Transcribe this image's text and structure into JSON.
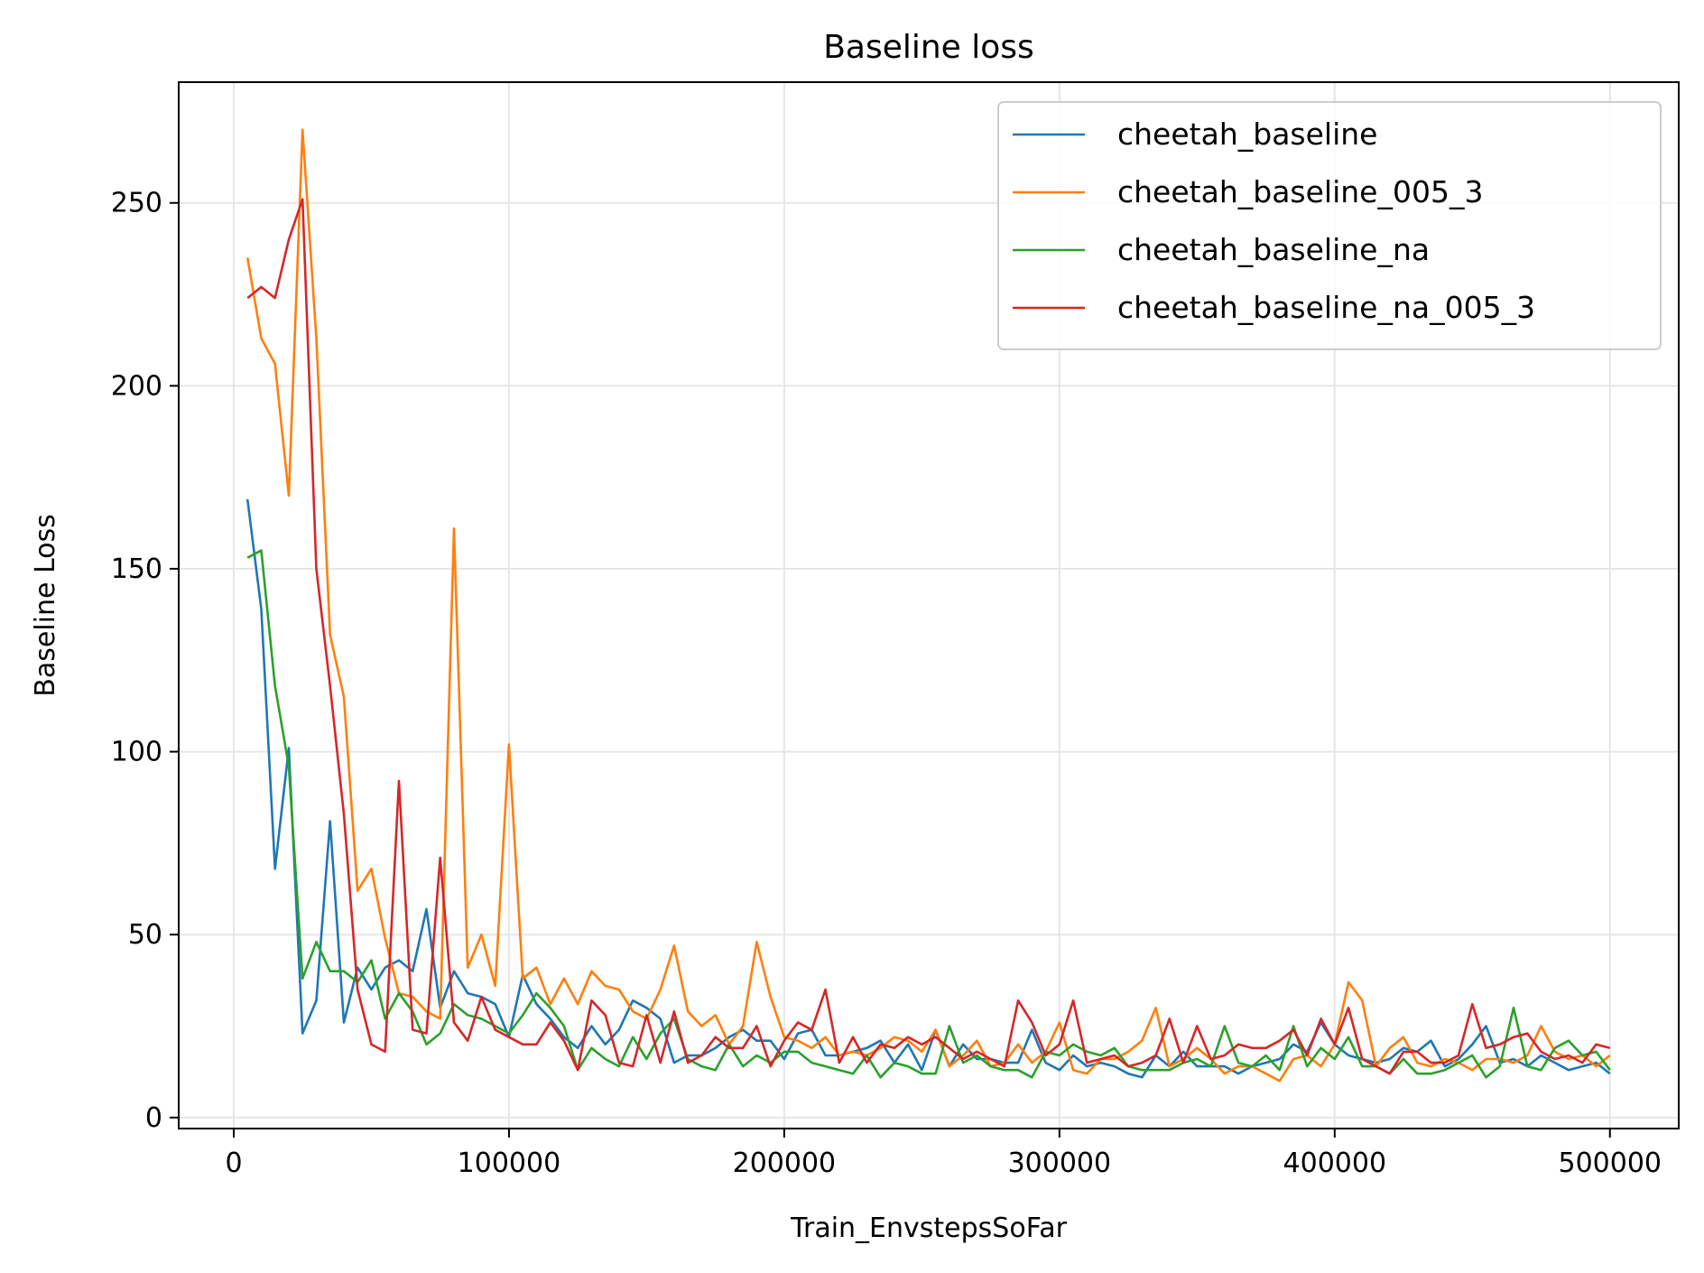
{
  "chart_data": {
    "type": "line",
    "title": "Baseline loss",
    "xlabel": "Train_EnvstepsSoFar",
    "ylabel": "Baseline Loss",
    "xlim": [
      -20000,
      525000
    ],
    "ylim": [
      -3,
      283
    ],
    "xticks": [
      0,
      100000,
      200000,
      300000,
      400000,
      500000
    ],
    "yticks": [
      0,
      50,
      100,
      150,
      200,
      250
    ],
    "grid": true,
    "legend_position": "top-right",
    "x": [
      5000,
      10000,
      15000,
      20000,
      25000,
      30000,
      35000,
      40000,
      45000,
      50000,
      55000,
      60000,
      65000,
      70000,
      75000,
      80000,
      85000,
      90000,
      95000,
      100000,
      105000,
      110000,
      115000,
      120000,
      125000,
      130000,
      135000,
      140000,
      145000,
      150000,
      155000,
      160000,
      165000,
      170000,
      175000,
      180000,
      185000,
      190000,
      195000,
      200000,
      205000,
      210000,
      215000,
      220000,
      225000,
      230000,
      235000,
      240000,
      245000,
      250000,
      255000,
      260000,
      265000,
      270000,
      275000,
      280000,
      285000,
      290000,
      295000,
      300000,
      305000,
      310000,
      315000,
      320000,
      325000,
      330000,
      335000,
      340000,
      345000,
      350000,
      355000,
      360000,
      365000,
      370000,
      375000,
      380000,
      385000,
      390000,
      395000,
      400000,
      405000,
      410000,
      415000,
      420000,
      425000,
      430000,
      435000,
      440000,
      445000,
      450000,
      455000,
      460000,
      465000,
      470000,
      475000,
      480000,
      485000,
      490000,
      495000,
      500000
    ],
    "series": [
      {
        "name": "cheetah_baseline",
        "color": "#1f77b4",
        "values": [
          169,
          139,
          68,
          101,
          23,
          32,
          81,
          26,
          41,
          35,
          41,
          43,
          40,
          57,
          30,
          40,
          34,
          33,
          31,
          22,
          39,
          31,
          27,
          22,
          19,
          25,
          20,
          24,
          32,
          30,
          27,
          15,
          17,
          17,
          19,
          22,
          24,
          21,
          21,
          16,
          23,
          24,
          17,
          17,
          18,
          19,
          21,
          15,
          20,
          13,
          24,
          14,
          20,
          16,
          16,
          15,
          15,
          24,
          15,
          13,
          17,
          14,
          15,
          14,
          12,
          11,
          17,
          14,
          18,
          14,
          14,
          14,
          12,
          14,
          15,
          16,
          20,
          18,
          26,
          20,
          17,
          16,
          15,
          16,
          19,
          18,
          21,
          14,
          16,
          20,
          25,
          15,
          16,
          14,
          17,
          15,
          13,
          14,
          15,
          12
        ]
      },
      {
        "name": "cheetah_baseline_005_3",
        "color": "#ff7f0e",
        "values": [
          235,
          213,
          206,
          170,
          270,
          213,
          132,
          115,
          62,
          68,
          49,
          34,
          33,
          29,
          27,
          161,
          41,
          50,
          36,
          102,
          38,
          41,
          31,
          38,
          31,
          40,
          36,
          35,
          29,
          27,
          35,
          47,
          29,
          25,
          28,
          20,
          25,
          48,
          33,
          22,
          21,
          19,
          22,
          17,
          18,
          17,
          19,
          22,
          21,
          18,
          24,
          14,
          17,
          21,
          14,
          15,
          20,
          15,
          18,
          26,
          13,
          12,
          16,
          16,
          18,
          21,
          30,
          14,
          16,
          19,
          16,
          12,
          14,
          14,
          12,
          10,
          16,
          17,
          14,
          20,
          37,
          32,
          14,
          19,
          22,
          15,
          14,
          16,
          15,
          13,
          16,
          16,
          15,
          17,
          25,
          18,
          16,
          17,
          14,
          17
        ]
      },
      {
        "name": "cheetah_baseline_na",
        "color": "#2ca02c",
        "values": [
          153,
          155,
          118,
          96,
          38,
          48,
          40,
          40,
          37,
          43,
          27,
          34,
          29,
          20,
          23,
          31,
          28,
          27,
          25,
          23,
          28,
          34,
          30,
          25,
          13,
          19,
          16,
          14,
          22,
          16,
          23,
          27,
          16,
          14,
          13,
          20,
          14,
          17,
          15,
          18,
          18,
          15,
          14,
          13,
          12,
          17,
          11,
          15,
          14,
          12,
          12,
          25,
          15,
          17,
          14,
          13,
          13,
          11,
          18,
          17,
          20,
          18,
          17,
          19,
          14,
          13,
          13,
          13,
          15,
          16,
          14,
          25,
          15,
          14,
          17,
          13,
          25,
          14,
          19,
          16,
          22,
          14,
          14,
          12,
          16,
          12,
          12,
          13,
          15,
          17,
          11,
          14,
          30,
          14,
          13,
          19,
          21,
          17,
          18,
          13
        ]
      },
      {
        "name": "cheetah_baseline_na_005_3",
        "color": "#d62728",
        "values": [
          224,
          227,
          224,
          240,
          251,
          150,
          118,
          83,
          35,
          20,
          18,
          92,
          24,
          23,
          71,
          26,
          21,
          33,
          24,
          22,
          20,
          20,
          26,
          21,
          13,
          32,
          28,
          15,
          14,
          28,
          15,
          29,
          15,
          17,
          22,
          19,
          19,
          25,
          14,
          21,
          26,
          24,
          35,
          15,
          22,
          15,
          20,
          19,
          22,
          20,
          22,
          19,
          16,
          18,
          16,
          14,
          32,
          26,
          17,
          20,
          32,
          15,
          16,
          17,
          14,
          15,
          17,
          27,
          15,
          25,
          16,
          17,
          20,
          19,
          19,
          21,
          24,
          17,
          27,
          20,
          30,
          16,
          14,
          12,
          18,
          18,
          15,
          15,
          17,
          31,
          19,
          20,
          22,
          23,
          18,
          16,
          17,
          15,
          20,
          19
        ]
      }
    ]
  }
}
